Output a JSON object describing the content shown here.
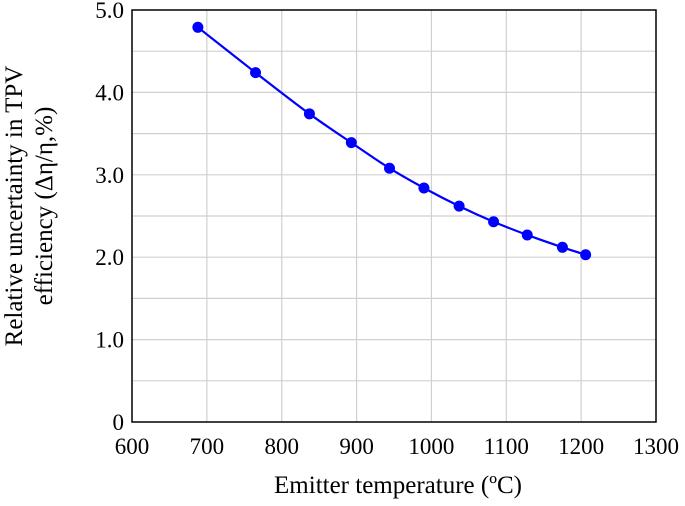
{
  "chart_data": {
    "type": "line",
    "title": "",
    "xlabel": "Emitter temperature (ºC)",
    "ylabel_line1": "Relative uncertainty in TPV",
    "ylabel_line2": "efficiency (Δη/η,%)",
    "xlim": [
      600,
      1300
    ],
    "ylim": [
      0,
      5
    ],
    "xticks": [
      600,
      700,
      800,
      900,
      1000,
      1100,
      1200,
      1300
    ],
    "yticks": [
      0,
      1,
      2,
      3,
      4,
      5
    ],
    "xtick_labels": [
      "600",
      "700",
      "800",
      "900",
      "1000",
      "1100",
      "1200",
      "1300"
    ],
    "ytick_labels": [
      "0",
      "1.0",
      "2.0",
      "3.0",
      "4.0",
      "5.0"
    ],
    "grid": true,
    "series": [
      {
        "color": "#0000ff",
        "marker": "circle",
        "x": [
          688,
          765,
          837,
          893,
          944,
          990,
          1037,
          1083,
          1128,
          1175,
          1206
        ],
        "y": [
          4.79,
          4.24,
          3.74,
          3.39,
          3.08,
          2.84,
          2.62,
          2.43,
          2.27,
          2.12,
          2.03
        ]
      }
    ]
  }
}
